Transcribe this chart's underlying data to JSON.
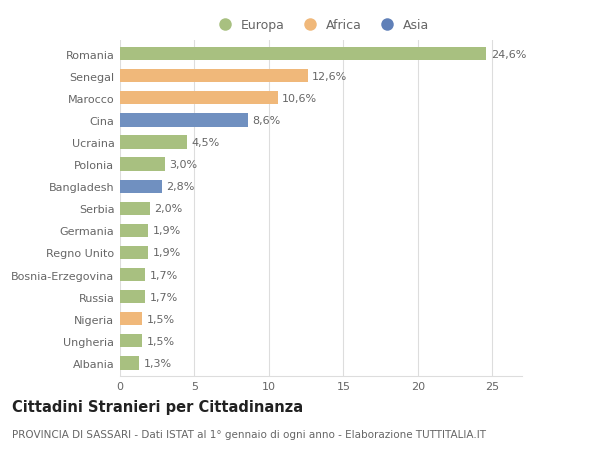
{
  "categories": [
    "Romania",
    "Senegal",
    "Marocco",
    "Cina",
    "Ucraina",
    "Polonia",
    "Bangladesh",
    "Serbia",
    "Germania",
    "Regno Unito",
    "Bosnia-Erzegovina",
    "Russia",
    "Nigeria",
    "Ungheria",
    "Albania"
  ],
  "values": [
    24.6,
    12.6,
    10.6,
    8.6,
    4.5,
    3.0,
    2.8,
    2.0,
    1.9,
    1.9,
    1.7,
    1.7,
    1.5,
    1.5,
    1.3
  ],
  "colors": [
    "#a8c080",
    "#f0b87a",
    "#f0b87a",
    "#7090c0",
    "#a8c080",
    "#a8c080",
    "#7090c0",
    "#a8c080",
    "#a8c080",
    "#a8c080",
    "#a8c080",
    "#a8c080",
    "#f0b87a",
    "#a8c080",
    "#a8c080"
  ],
  "labels": [
    "24,6%",
    "12,6%",
    "10,6%",
    "8,6%",
    "4,5%",
    "3,0%",
    "2,8%",
    "2,0%",
    "1,9%",
    "1,9%",
    "1,7%",
    "1,7%",
    "1,5%",
    "1,5%",
    "1,3%"
  ],
  "legend": [
    {
      "label": "Europa",
      "color": "#a8c080"
    },
    {
      "label": "Africa",
      "color": "#f0b87a"
    },
    {
      "label": "Asia",
      "color": "#6080b8"
    }
  ],
  "xlim": [
    0,
    27
  ],
  "xticks": [
    0,
    5,
    10,
    15,
    20,
    25
  ],
  "title": "Cittadini Stranieri per Cittadinanza",
  "subtitle": "PROVINCIA DI SASSARI - Dati ISTAT al 1° gennaio di ogni anno - Elaborazione TUTTITALIA.IT",
  "bg_color": "#ffffff",
  "bar_height": 0.6,
  "grid_color": "#dddddd",
  "text_color": "#666666",
  "label_fontsize": 8,
  "tick_fontsize": 8,
  "title_fontsize": 10.5,
  "subtitle_fontsize": 7.5
}
